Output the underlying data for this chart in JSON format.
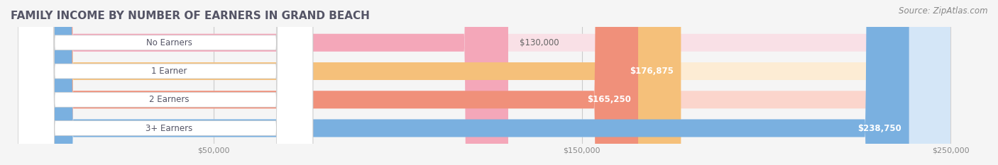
{
  "title": "FAMILY INCOME BY NUMBER OF EARNERS IN GRAND BEACH",
  "source": "Source: ZipAtlas.com",
  "categories": [
    "No Earners",
    "1 Earner",
    "2 Earners",
    "3+ Earners"
  ],
  "values": [
    130000,
    176875,
    165250,
    238750
  ],
  "value_labels": [
    "$130,000",
    "$176,875",
    "$165,250",
    "$238,750"
  ],
  "bar_colors": [
    "#f4a7b9",
    "#f5c07a",
    "#f0907a",
    "#7ab0e0"
  ],
  "bar_bg_colors": [
    "#f9e0e6",
    "#fdecd4",
    "#fbd5cc",
    "#d4e6f7"
  ],
  "label_colors": [
    "#888888",
    "#ffffff",
    "#888888",
    "#ffffff"
  ],
  "x_min": 0,
  "x_max": 250000,
  "x_ticks": [
    50000,
    150000,
    250000
  ],
  "x_tick_labels": [
    "$50,000",
    "$150,000",
    "$250,000"
  ],
  "bg_color": "#f5f5f5",
  "bar_height": 0.62,
  "title_color": "#555566",
  "title_fontsize": 11,
  "source_color": "#888888",
  "source_fontsize": 8.5
}
